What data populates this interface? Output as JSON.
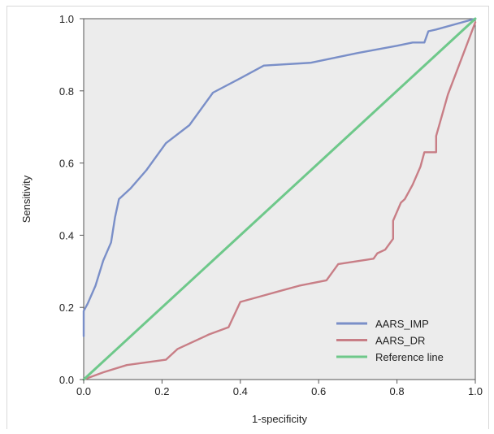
{
  "chart_data": {
    "type": "line",
    "title": "",
    "xlabel": "1-specificity",
    "ylabel": "Sensitivity",
    "xlim": [
      0,
      1
    ],
    "ylim": [
      0,
      1
    ],
    "xticks": [
      "0.0",
      "0.2",
      "0.4",
      "0.6",
      "0.8",
      "1.0"
    ],
    "yticks": [
      "0.0",
      "0.2",
      "0.4",
      "0.6",
      "0.8",
      "1.0"
    ],
    "grid": false,
    "legend_position": "bottom-right",
    "background_color": "#ececec",
    "series": [
      {
        "name": "AARS_IMP",
        "color": "#7a8fc8",
        "x": [
          0.0,
          0.0,
          0.01,
          0.03,
          0.05,
          0.07,
          0.08,
          0.09,
          0.12,
          0.16,
          0.21,
          0.27,
          0.33,
          0.4,
          0.46,
          0.58,
          0.7,
          0.8,
          0.84,
          0.87,
          0.88,
          0.9,
          1.0
        ],
        "y": [
          0.12,
          0.19,
          0.21,
          0.26,
          0.33,
          0.38,
          0.45,
          0.5,
          0.53,
          0.58,
          0.655,
          0.705,
          0.795,
          0.835,
          0.87,
          0.878,
          0.905,
          0.925,
          0.934,
          0.934,
          0.965,
          0.97,
          1.0
        ]
      },
      {
        "name": "AARS_DR",
        "color": "#c87e86",
        "x": [
          0.0,
          0.05,
          0.11,
          0.21,
          0.24,
          0.32,
          0.37,
          0.4,
          0.45,
          0.5,
          0.55,
          0.62,
          0.65,
          0.74,
          0.75,
          0.77,
          0.79,
          0.79,
          0.81,
          0.82,
          0.83,
          0.84,
          0.86,
          0.86,
          0.87,
          0.87,
          0.9,
          0.9,
          0.93,
          1.0
        ],
        "y": [
          0.0,
          0.02,
          0.04,
          0.055,
          0.085,
          0.125,
          0.145,
          0.215,
          0.23,
          0.245,
          0.26,
          0.275,
          0.32,
          0.335,
          0.35,
          0.36,
          0.39,
          0.44,
          0.49,
          0.5,
          0.52,
          0.54,
          0.59,
          0.59,
          0.63,
          0.63,
          0.63,
          0.675,
          0.79,
          0.99
        ]
      },
      {
        "name": "Reference line",
        "color": "#6ec88a",
        "x": [
          0.0,
          1.0
        ],
        "y": [
          0.0,
          1.0
        ]
      }
    ]
  }
}
